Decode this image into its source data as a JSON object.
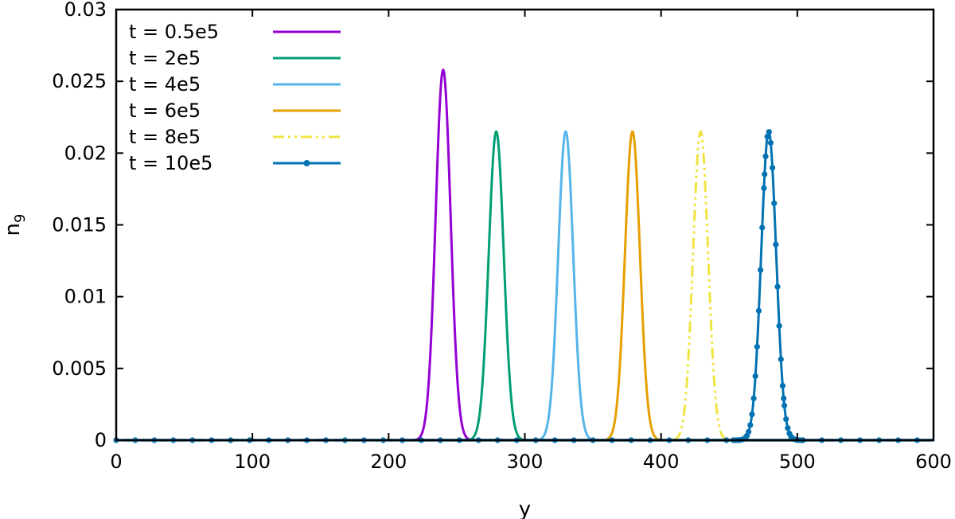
{
  "chart_data": {
    "type": "line",
    "title": "",
    "xlabel": "y",
    "ylabel": "n",
    "ylabel_sub": "9",
    "xlim": [
      0,
      600
    ],
    "ylim": [
      0,
      0.03
    ],
    "xticks": [
      0,
      100,
      200,
      300,
      400,
      500,
      600
    ],
    "xtick_labels": [
      "0",
      "100",
      "200",
      "300",
      "400",
      "500",
      "600"
    ],
    "yticks": [
      0,
      0.005,
      0.01,
      0.015,
      0.02,
      0.025,
      0.03
    ],
    "ytick_labels": [
      "0",
      "0.005",
      "0.01",
      "0.015",
      "0.02",
      "0.025",
      "0.03"
    ],
    "grid": false,
    "legend_position": "top-left",
    "series": [
      {
        "name": "t = 0.5e5",
        "color": "#9400d3",
        "style": "solid",
        "peak_x": 240,
        "peak_y": 0.0258,
        "width": 5.5,
        "x": [
          0,
          210,
          220,
          226,
          230,
          233,
          236,
          238,
          240,
          242,
          244,
          247,
          250,
          254,
          260,
          270,
          600
        ],
        "y": [
          0,
          0,
          0.0005,
          0.0017,
          0.0041,
          0.0081,
          0.0148,
          0.0208,
          0.0258,
          0.0208,
          0.0148,
          0.0081,
          0.0041,
          0.0017,
          0.0005,
          0,
          0
        ]
      },
      {
        "name": "t = 2e5",
        "color": "#009e73",
        "style": "solid",
        "peak_x": 279,
        "peak_y": 0.0215,
        "width": 5.5,
        "x": [
          0,
          250,
          259,
          265,
          269,
          272,
          275,
          277,
          279,
          281,
          283,
          286,
          289,
          293,
          299,
          310,
          600
        ],
        "y": [
          0,
          0,
          0.0004,
          0.0014,
          0.0034,
          0.0068,
          0.0124,
          0.0174,
          0.0215,
          0.0174,
          0.0124,
          0.0068,
          0.0034,
          0.0014,
          0.0004,
          0,
          0
        ]
      },
      {
        "name": "t = 4e5",
        "color": "#56b4e9",
        "style": "solid",
        "peak_x": 330,
        "peak_y": 0.0215,
        "width": 5.5,
        "x": [
          0,
          300,
          310,
          316,
          320,
          323,
          326,
          328,
          330,
          332,
          334,
          337,
          340,
          344,
          350,
          360,
          600
        ],
        "y": [
          0,
          0,
          0.0004,
          0.0014,
          0.0034,
          0.0068,
          0.0124,
          0.0174,
          0.0215,
          0.0174,
          0.0124,
          0.0068,
          0.0034,
          0.0014,
          0.0004,
          0,
          0
        ]
      },
      {
        "name": "t = 6e5",
        "color": "#e69f00",
        "style": "solid",
        "peak_x": 379,
        "peak_y": 0.0215,
        "width": 5.5,
        "x": [
          0,
          350,
          359,
          365,
          369,
          372,
          375,
          377,
          379,
          381,
          383,
          386,
          389,
          393,
          399,
          410,
          600
        ],
        "y": [
          0,
          0,
          0.0004,
          0.0014,
          0.0034,
          0.0068,
          0.0124,
          0.0174,
          0.0215,
          0.0174,
          0.0124,
          0.0068,
          0.0034,
          0.0014,
          0.0004,
          0,
          0
        ]
      },
      {
        "name": "t = 8e5",
        "color": "#f0e442",
        "style": "dashdot",
        "peak_x": 429,
        "peak_y": 0.0215,
        "width": 5.5,
        "x": [
          0,
          400,
          409,
          415,
          419,
          422,
          425,
          427,
          429,
          431,
          433,
          436,
          439,
          443,
          449,
          460,
          600
        ],
        "y": [
          0,
          0,
          0.0004,
          0.0014,
          0.0034,
          0.0068,
          0.0124,
          0.0174,
          0.0215,
          0.0174,
          0.0124,
          0.0068,
          0.0034,
          0.0014,
          0.0004,
          0,
          0
        ]
      },
      {
        "name": "t = 10e5",
        "color": "#0072b2",
        "style": "points",
        "peak_x": 479,
        "peak_y": 0.0215,
        "width": 5.5,
        "x": [
          0,
          450,
          459,
          465,
          469,
          472,
          475,
          477,
          479,
          481,
          483,
          486,
          489,
          493,
          499,
          510,
          600
        ],
        "y": [
          0,
          0,
          0.0004,
          0.0014,
          0.0034,
          0.0068,
          0.0124,
          0.0174,
          0.0215,
          0.0174,
          0.0124,
          0.0068,
          0.0034,
          0.0014,
          0.0004,
          0,
          0
        ]
      }
    ]
  }
}
